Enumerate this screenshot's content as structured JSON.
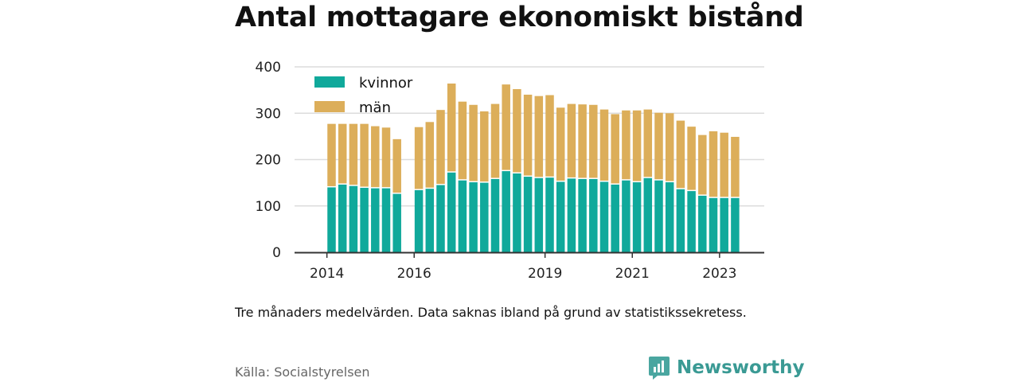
{
  "title": "Antal mottagare ekonomiskt bistånd",
  "caption": "Tre månaders medelvärden. Data saknas ibland på grund av statistikssekretess.",
  "source": "Källa: Socialstyrelsen",
  "brand": {
    "name": "Newsworthy",
    "icon": "newsworthy-logo-icon"
  },
  "colors": {
    "kvinnor": "#10a99b",
    "man": "#dcae5a",
    "grid": "#dcdcdc",
    "axis": "#333333"
  },
  "chart_data": {
    "type": "bar",
    "stacked": true,
    "y_ticks": [
      0,
      100,
      200,
      300,
      400
    ],
    "ylim": [
      0,
      400
    ],
    "x_ticks": [
      "2014",
      "2016",
      "2019",
      "2021",
      "2023"
    ],
    "grid": true,
    "legend_position": "top-left",
    "series": [
      {
        "name": "kvinnor",
        "values": [
          140,
          146,
          143,
          139,
          138,
          138,
          126,
          null,
          134,
          137,
          145,
          172,
          155,
          151,
          150,
          158,
          175,
          170,
          163,
          160,
          161,
          152,
          159,
          158,
          158,
          152,
          146,
          155,
          151,
          160,
          155,
          151,
          136,
          132,
          122,
          117,
          117,
          117
        ]
      },
      {
        "name": "män",
        "values": [
          137,
          131,
          134,
          138,
          134,
          131,
          118,
          null,
          136,
          144,
          162,
          192,
          170,
          167,
          154,
          162,
          187,
          182,
          177,
          177,
          178,
          160,
          161,
          161,
          160,
          156,
          152,
          151,
          155,
          148,
          146,
          149,
          148,
          139,
          131,
          144,
          141,
          132
        ]
      }
    ],
    "tick_index": {
      "2014": 0,
      "2016": 8,
      "2019": 20,
      "2021": 28,
      "2023": 36
    }
  }
}
